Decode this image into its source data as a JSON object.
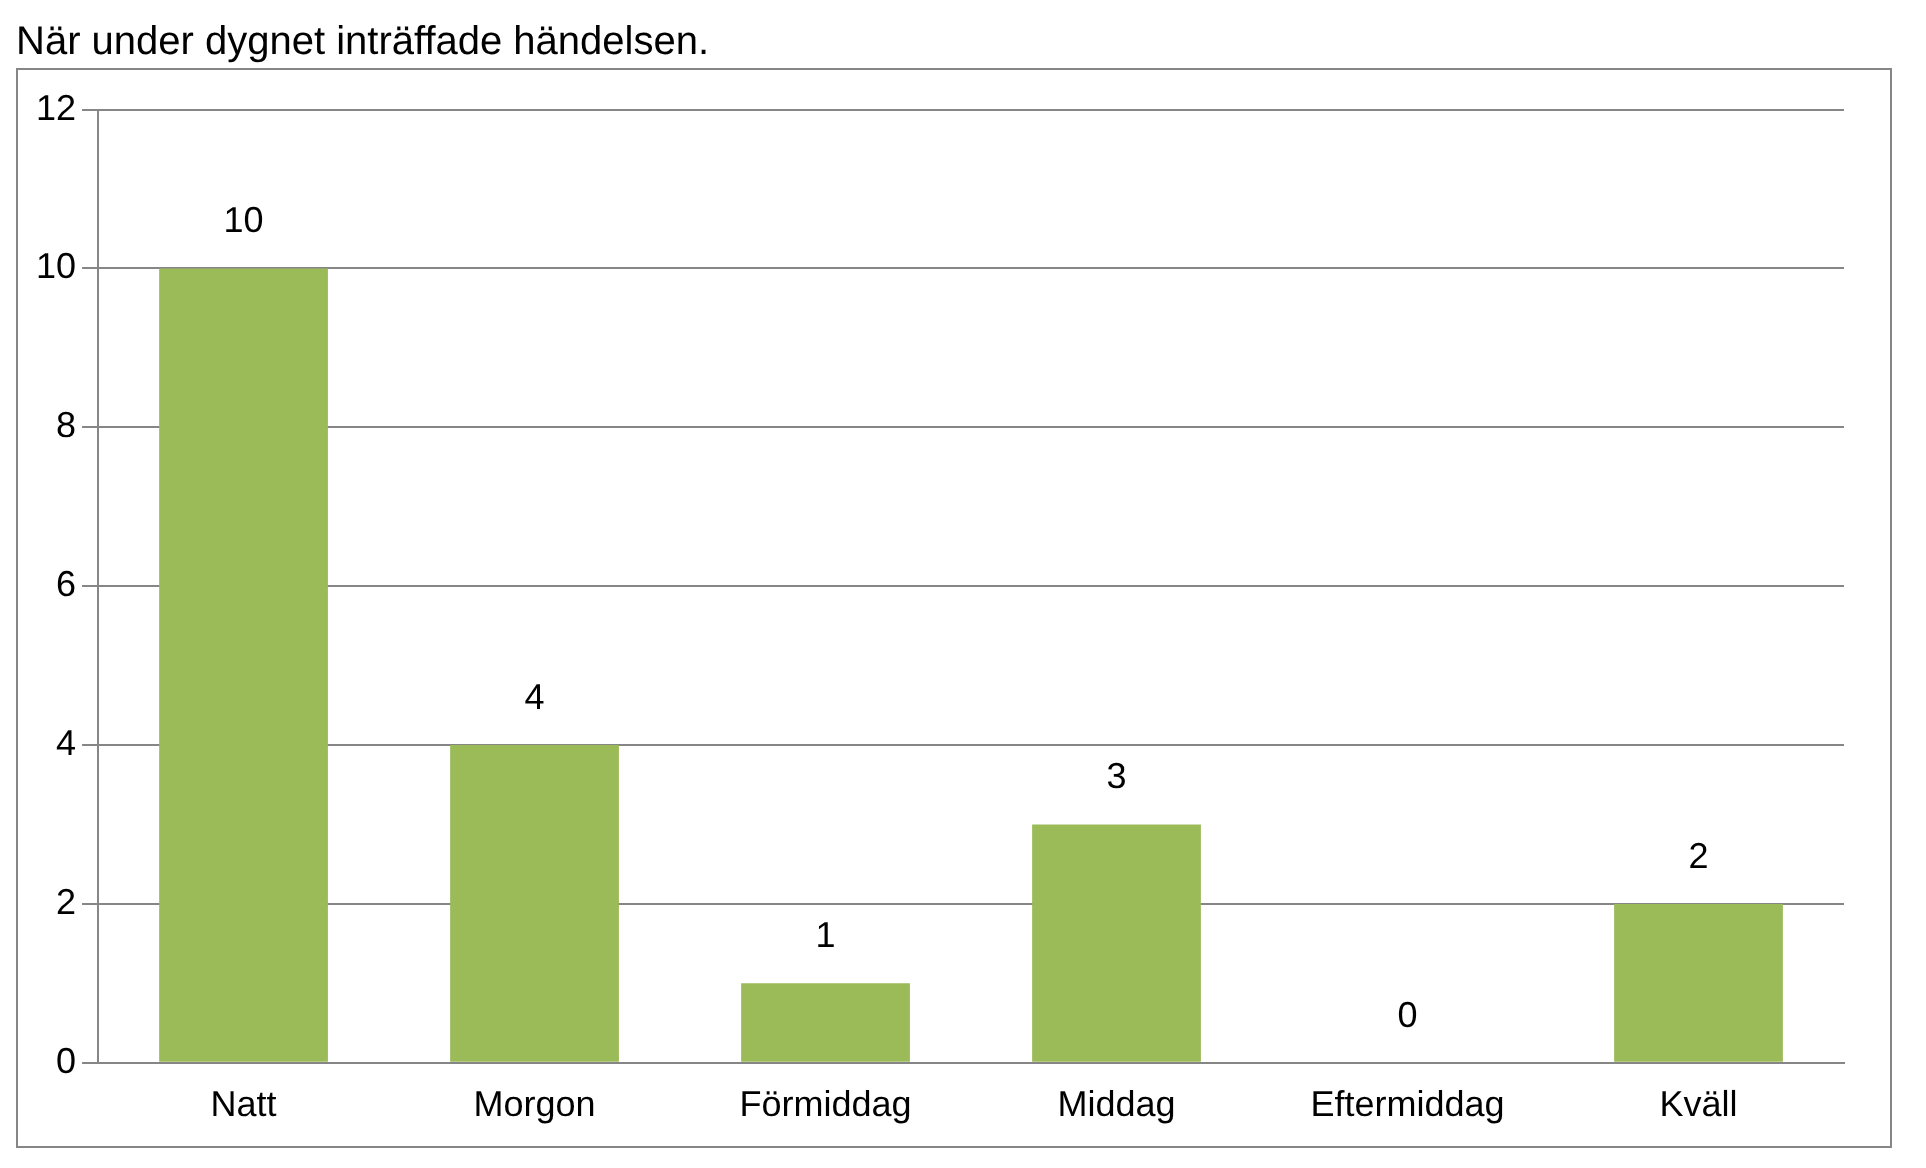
{
  "chart_data": {
    "type": "bar",
    "title": "När under dygnet inträffade händelsen.",
    "categories": [
      "Natt",
      "Morgon",
      "Förmiddag",
      "Middag",
      "Eftermiddag",
      "Kväll"
    ],
    "values": [
      10,
      4,
      1,
      3,
      0,
      2
    ],
    "color": "#9bbb59",
    "ylim": [
      0,
      12
    ],
    "yticks": [
      0,
      2,
      4,
      6,
      8,
      10,
      12
    ],
    "grid": "y",
    "data_labels": true
  }
}
